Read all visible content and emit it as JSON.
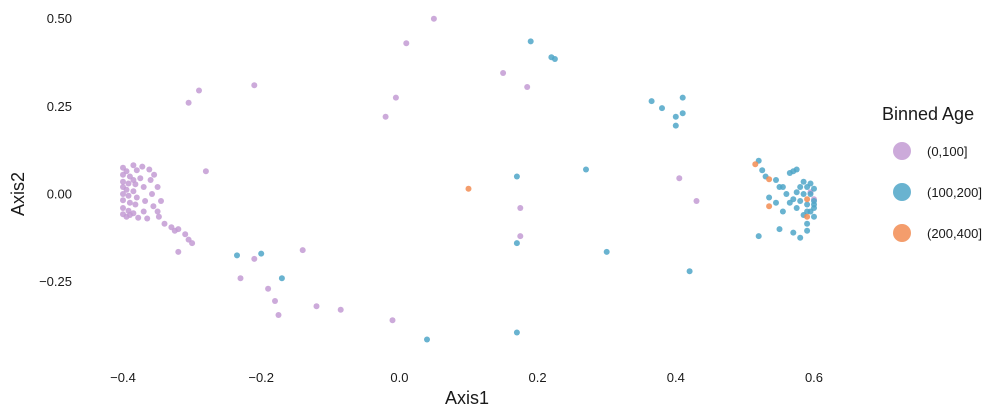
{
  "chart_data": {
    "type": "scatter",
    "xlabel": "Axis1",
    "ylabel": "Axis2",
    "xlim": [
      -0.44,
      0.63
    ],
    "ylim": [
      -0.45,
      0.51
    ],
    "x_ticks": [
      -0.4,
      -0.2,
      0.0,
      0.2,
      0.4,
      0.6
    ],
    "x_tick_labels": [
      "−0.4",
      "−0.2",
      "0.0",
      "0.2",
      "0.4",
      "0.6"
    ],
    "y_ticks": [
      -0.25,
      0.0,
      0.25,
      0.5
    ],
    "y_tick_labels": [
      "−0.25",
      "0.00",
      "0.25",
      "0.50"
    ],
    "grid": false,
    "legend": {
      "title": "Binned Age",
      "position": "right"
    },
    "series": [
      {
        "name": "(0,100]",
        "color": "#c39bd3",
        "points": [
          [
            0.05,
            0.5
          ],
          [
            0.01,
            0.43
          ],
          [
            -0.21,
            0.31
          ],
          [
            -0.29,
            0.295
          ],
          [
            -0.305,
            0.26
          ],
          [
            0.15,
            0.345
          ],
          [
            0.185,
            0.305
          ],
          [
            -0.005,
            0.275
          ],
          [
            -0.02,
            0.22
          ],
          [
            -0.28,
            0.065
          ],
          [
            -0.4,
            0.075
          ],
          [
            -0.395,
            0.065
          ],
          [
            -0.4,
            0.055
          ],
          [
            -0.39,
            0.05
          ],
          [
            -0.385,
            0.04
          ],
          [
            -0.4,
            0.035
          ],
          [
            -0.392,
            0.03
          ],
          [
            -0.382,
            0.028
          ],
          [
            -0.4,
            0.02
          ],
          [
            -0.395,
            0.012
          ],
          [
            -0.385,
            0.008
          ],
          [
            -0.4,
            0.0
          ],
          [
            -0.392,
            -0.005
          ],
          [
            -0.38,
            -0.01
          ],
          [
            -0.4,
            -0.018
          ],
          [
            -0.39,
            -0.025
          ],
          [
            -0.382,
            -0.03
          ],
          [
            -0.4,
            -0.04
          ],
          [
            -0.392,
            -0.048
          ],
          [
            -0.385,
            -0.055
          ],
          [
            -0.4,
            -0.058
          ],
          [
            -0.39,
            -0.06
          ],
          [
            -0.395,
            -0.065
          ],
          [
            -0.38,
            0.068
          ],
          [
            -0.372,
            0.078
          ],
          [
            -0.375,
            0.045
          ],
          [
            -0.37,
            0.02
          ],
          [
            -0.368,
            -0.02
          ],
          [
            -0.37,
            -0.05
          ],
          [
            -0.362,
            0.07
          ],
          [
            -0.36,
            0.04
          ],
          [
            -0.358,
            0.0
          ],
          [
            -0.356,
            -0.035
          ],
          [
            -0.35,
            0.02
          ],
          [
            -0.35,
            -0.05
          ],
          [
            -0.348,
            -0.065
          ],
          [
            -0.345,
            -0.02
          ],
          [
            -0.355,
            0.055
          ],
          [
            -0.385,
            0.082
          ],
          [
            -0.378,
            -0.068
          ],
          [
            -0.365,
            -0.07
          ],
          [
            -0.34,
            -0.085
          ],
          [
            -0.33,
            -0.095
          ],
          [
            -0.32,
            -0.1
          ],
          [
            -0.325,
            -0.105
          ],
          [
            -0.31,
            -0.115
          ],
          [
            -0.305,
            -0.13
          ],
          [
            -0.3,
            -0.14
          ],
          [
            -0.32,
            -0.165
          ],
          [
            -0.23,
            -0.24
          ],
          [
            -0.19,
            -0.27
          ],
          [
            -0.18,
            -0.305
          ],
          [
            -0.175,
            -0.345
          ],
          [
            -0.14,
            -0.16
          ],
          [
            -0.12,
            -0.32
          ],
          [
            -0.085,
            -0.33
          ],
          [
            -0.01,
            -0.36
          ],
          [
            0.175,
            -0.04
          ],
          [
            0.175,
            -0.12
          ],
          [
            0.405,
            0.045
          ],
          [
            0.43,
            -0.02
          ],
          [
            0.6,
            -0.015
          ],
          [
            0.595,
            0.005
          ],
          [
            -0.21,
            -0.185
          ]
        ]
      },
      {
        "name": "(100,200]",
        "color": "#4fa6c8",
        "points": [
          [
            0.19,
            0.435
          ],
          [
            0.22,
            0.39
          ],
          [
            0.225,
            0.385
          ],
          [
            0.365,
            0.265
          ],
          [
            0.38,
            0.245
          ],
          [
            0.4,
            0.22
          ],
          [
            0.41,
            0.275
          ],
          [
            0.4,
            0.195
          ],
          [
            0.41,
            0.23
          ],
          [
            0.17,
            0.05
          ],
          [
            0.27,
            0.07
          ],
          [
            0.17,
            -0.14
          ],
          [
            0.3,
            -0.165
          ],
          [
            0.42,
            -0.22
          ],
          [
            0.17,
            -0.395
          ],
          [
            0.04,
            -0.415
          ],
          [
            -0.235,
            -0.175
          ],
          [
            -0.2,
            -0.17
          ],
          [
            -0.17,
            -0.24
          ],
          [
            0.52,
            0.095
          ],
          [
            0.525,
            0.068
          ],
          [
            0.52,
            -0.12
          ],
          [
            0.53,
            0.05
          ],
          [
            0.545,
            0.04
          ],
          [
            0.55,
            0.02
          ],
          [
            0.56,
            0.0
          ],
          [
            0.565,
            0.06
          ],
          [
            0.57,
            -0.015
          ],
          [
            0.58,
            0.02
          ],
          [
            0.575,
            -0.04
          ],
          [
            0.585,
            -0.06
          ],
          [
            0.59,
            0.02
          ],
          [
            0.59,
            -0.03
          ],
          [
            0.595,
            0.0
          ],
          [
            0.595,
            -0.05
          ],
          [
            0.6,
            0.015
          ],
          [
            0.6,
            -0.02
          ],
          [
            0.6,
            -0.04
          ],
          [
            0.585,
            0.0
          ],
          [
            0.575,
            0.005
          ],
          [
            0.565,
            -0.025
          ],
          [
            0.555,
            -0.05
          ],
          [
            0.55,
            -0.1
          ],
          [
            0.57,
            -0.11
          ],
          [
            0.58,
            -0.125
          ],
          [
            0.59,
            -0.105
          ],
          [
            0.545,
            -0.025
          ],
          [
            0.535,
            -0.01
          ],
          [
            0.585,
            0.035
          ],
          [
            0.595,
            0.03
          ],
          [
            0.6,
            -0.065
          ],
          [
            0.59,
            -0.085
          ],
          [
            0.58,
            -0.02
          ],
          [
            0.575,
            0.07
          ],
          [
            0.57,
            0.065
          ],
          [
            0.555,
            0.02
          ],
          [
            0.59,
            -0.05
          ],
          [
            0.6,
            -0.03
          ]
        ]
      },
      {
        "name": "(200,400]",
        "color": "#f28c52",
        "points": [
          [
            0.1,
            0.015
          ],
          [
            0.515,
            0.085
          ],
          [
            0.535,
            0.042
          ],
          [
            0.535,
            -0.035
          ],
          [
            0.59,
            -0.015
          ],
          [
            0.59,
            -0.065
          ]
        ]
      }
    ]
  }
}
